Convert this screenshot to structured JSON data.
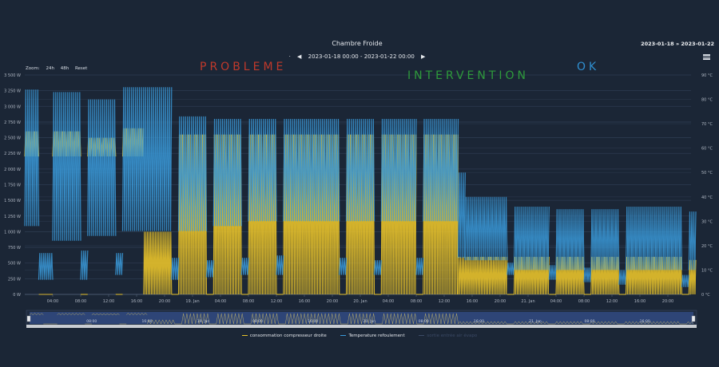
{
  "header": {
    "title": "Chambre Froide",
    "range_text": "2023-01-18 00:00 - 2023-01-22 00:00",
    "range_top_right": "2023-01-18 » 2023-01-22",
    "prev_icon": "triangle-left",
    "next_icon": "triangle-right",
    "menu_icon": "hamburger"
  },
  "zoom": {
    "label": "Zoom:",
    "buttons": [
      "24h",
      "48h",
      "Reset"
    ]
  },
  "annotations": {
    "probleme": "PROBLEME",
    "intervention": "INTERVENTION",
    "ok": "OK"
  },
  "legend": [
    {
      "label": "consommation compresseur droite",
      "color": "#e8c22a",
      "visible": true
    },
    {
      "label": "Temperature refoulement",
      "color": "#3a9ad9",
      "visible": true
    },
    {
      "label": "sortie entrée air évapo",
      "color": "#3c4a66",
      "visible": false
    }
  ],
  "navigator": {
    "labels": [
      "08:00",
      "16:00",
      "19. Jan",
      "08:00",
      "16:00",
      "20. Jan",
      "08:00",
      "16:00",
      "21. Jan",
      "08:00",
      "16:00"
    ]
  },
  "chart_data": {
    "type": "line",
    "title": "Chambre Froide",
    "x_range": [
      "2023-01-18 00:00",
      "2023-01-22 00:00"
    ],
    "x_tick_labels": [
      "04:00",
      "08:00",
      "12:00",
      "16:00",
      "20:00",
      "19. Jan",
      "04:00",
      "08:00",
      "12:00",
      "16:00",
      "20:00",
      "20. Jan",
      "04:00",
      "08:00",
      "12:00",
      "16:00",
      "20:00",
      "21. Jan",
      "04:00",
      "08:00",
      "12:00",
      "16:00",
      "20:00"
    ],
    "y_left": {
      "unit": "W",
      "range": [
        0,
        3500
      ],
      "tick_labels": [
        "0 W",
        "250 W",
        "500 W",
        "750 W",
        "1 000 W",
        "1 250 W",
        "1 500 W",
        "1 750 W",
        "2 000 W",
        "2 250 W",
        "2 500 W",
        "2 750 W",
        "3 000 W",
        "3 250 W",
        "3 500 W"
      ]
    },
    "y_right": {
      "unit": "°C",
      "range": [
        0,
        90
      ],
      "tick_labels": [
        "0 °C",
        "10 °C",
        "20 °C",
        "30 °C",
        "40 °C",
        "50 °C",
        "60 °C",
        "70 °C",
        "80 °C",
        "90 °C"
      ]
    },
    "grid": true,
    "legend_position": "bottom",
    "series": [
      {
        "name": "consommation compresseur droite",
        "axis": "left",
        "color": "#e8c22a",
        "segments": [
          {
            "from": "2023-01-18 00:00",
            "to": "2023-01-18 02:00",
            "min": 2200,
            "max": 2600
          },
          {
            "from": "2023-01-18 02:00",
            "to": "2023-01-18 04:00",
            "min": 0,
            "max": 0
          },
          {
            "from": "2023-01-18 04:00",
            "to": "2023-01-18 08:00",
            "min": 2200,
            "max": 2600
          },
          {
            "from": "2023-01-18 08:00",
            "to": "2023-01-18 09:00",
            "min": 0,
            "max": 0
          },
          {
            "from": "2023-01-18 09:00",
            "to": "2023-01-18 13:00",
            "min": 2200,
            "max": 2500
          },
          {
            "from": "2023-01-18 13:00",
            "to": "2023-01-18 14:00",
            "min": 0,
            "max": 0
          },
          {
            "from": "2023-01-18 14:00",
            "to": "2023-01-18 17:00",
            "min": 2200,
            "max": 2650
          },
          {
            "from": "2023-01-18 17:00",
            "to": "2023-01-18 21:00",
            "min": 0,
            "max": 1000
          },
          {
            "from": "2023-01-18 21:00",
            "to": "2023-01-18 22:00",
            "min": 0,
            "max": 0
          },
          {
            "from": "2023-01-18 22:00",
            "to": "2023-01-19 02:00",
            "min": 0,
            "max": 2550
          },
          {
            "from": "2023-01-19 02:00",
            "to": "2023-01-19 03:00",
            "min": 0,
            "max": 0
          },
          {
            "from": "2023-01-19 03:00",
            "to": "2023-01-19 07:00",
            "min": 0,
            "max": 2550
          },
          {
            "from": "2023-01-19 07:00",
            "to": "2023-01-19 08:00",
            "min": 0,
            "max": 0
          },
          {
            "from": "2023-01-19 08:00",
            "to": "2023-01-19 12:00",
            "min": 0,
            "max": 2550
          },
          {
            "from": "2023-01-19 12:00",
            "to": "2023-01-19 13:00",
            "min": 0,
            "max": 0
          },
          {
            "from": "2023-01-19 13:00",
            "to": "2023-01-19 21:00",
            "min": 0,
            "max": 2550
          },
          {
            "from": "2023-01-19 21:00",
            "to": "2023-01-19 22:00",
            "min": 0,
            "max": 0
          },
          {
            "from": "2023-01-19 22:00",
            "to": "2023-01-20 02:00",
            "min": 0,
            "max": 2550
          },
          {
            "from": "2023-01-20 02:00",
            "to": "2023-01-20 03:00",
            "min": 0,
            "max": 0
          },
          {
            "from": "2023-01-20 03:00",
            "to": "2023-01-20 08:00",
            "min": 0,
            "max": 2550
          },
          {
            "from": "2023-01-20 08:00",
            "to": "2023-01-20 09:00",
            "min": 0,
            "max": 0
          },
          {
            "from": "2023-01-20 09:00",
            "to": "2023-01-20 14:00",
            "min": 0,
            "max": 2550
          },
          {
            "from": "2023-01-20 14:00",
            "to": "2023-01-20 21:00",
            "min": 0,
            "max": 600
          },
          {
            "from": "2023-01-20 21:00",
            "to": "2023-01-20 22:00",
            "min": 0,
            "max": 0
          },
          {
            "from": "2023-01-20 22:00",
            "to": "2023-01-21 03:00",
            "min": 0,
            "max": 600
          },
          {
            "from": "2023-01-21 03:00",
            "to": "2023-01-21 04:00",
            "min": 0,
            "max": 0
          },
          {
            "from": "2023-01-21 04:00",
            "to": "2023-01-21 08:00",
            "min": 0,
            "max": 600
          },
          {
            "from": "2023-01-21 08:00",
            "to": "2023-01-21 09:00",
            "min": 0,
            "max": 0
          },
          {
            "from": "2023-01-21 09:00",
            "to": "2023-01-21 13:00",
            "min": 0,
            "max": 600
          },
          {
            "from": "2023-01-21 13:00",
            "to": "2023-01-21 14:00",
            "min": 0,
            "max": 0
          },
          {
            "from": "2023-01-21 14:00",
            "to": "2023-01-21 22:00",
            "min": 0,
            "max": 600
          },
          {
            "from": "2023-01-21 22:00",
            "to": "2023-01-21 23:00",
            "min": 0,
            "max": 0
          },
          {
            "from": "2023-01-21 23:00",
            "to": "2023-01-22 00:00",
            "min": 0,
            "max": 550
          }
        ]
      },
      {
        "name": "Temperature refoulement",
        "axis": "right",
        "color": "#3a9ad9",
        "segments": [
          {
            "from": "2023-01-18 00:00",
            "to": "2023-01-18 02:00",
            "min": 28,
            "max": 84
          },
          {
            "from": "2023-01-18 02:00",
            "to": "2023-01-18 04:00",
            "min": 6,
            "max": 17
          },
          {
            "from": "2023-01-18 04:00",
            "to": "2023-01-18 08:00",
            "min": 22,
            "max": 83
          },
          {
            "from": "2023-01-18 08:00",
            "to": "2023-01-18 09:00",
            "min": 6,
            "max": 18
          },
          {
            "from": "2023-01-18 09:00",
            "to": "2023-01-18 13:00",
            "min": 24,
            "max": 80
          },
          {
            "from": "2023-01-18 13:00",
            "to": "2023-01-18 14:00",
            "min": 8,
            "max": 17
          },
          {
            "from": "2023-01-18 14:00",
            "to": "2023-01-18 21:00",
            "min": 26,
            "max": 85
          },
          {
            "from": "2023-01-18 21:00",
            "to": "2023-01-18 22:00",
            "min": 6,
            "max": 15
          },
          {
            "from": "2023-01-18 22:00",
            "to": "2023-01-19 02:00",
            "min": 26,
            "max": 73
          },
          {
            "from": "2023-01-19 02:00",
            "to": "2023-01-19 03:00",
            "min": 7,
            "max": 14
          },
          {
            "from": "2023-01-19 03:00",
            "to": "2023-01-19 07:00",
            "min": 28,
            "max": 72
          },
          {
            "from": "2023-01-19 07:00",
            "to": "2023-01-19 08:00",
            "min": 8,
            "max": 15
          },
          {
            "from": "2023-01-19 08:00",
            "to": "2023-01-19 12:00",
            "min": 30,
            "max": 72
          },
          {
            "from": "2023-01-19 12:00",
            "to": "2023-01-19 13:00",
            "min": 8,
            "max": 16
          },
          {
            "from": "2023-01-19 13:00",
            "to": "2023-01-19 21:00",
            "min": 30,
            "max": 72
          },
          {
            "from": "2023-01-19 21:00",
            "to": "2023-01-19 22:00",
            "min": 8,
            "max": 15
          },
          {
            "from": "2023-01-19 22:00",
            "to": "2023-01-20 02:00",
            "min": 30,
            "max": 72
          },
          {
            "from": "2023-01-20 02:00",
            "to": "2023-01-20 03:00",
            "min": 8,
            "max": 14
          },
          {
            "from": "2023-01-20 03:00",
            "to": "2023-01-20 08:00",
            "min": 30,
            "max": 72
          },
          {
            "from": "2023-01-20 08:00",
            "to": "2023-01-20 09:00",
            "min": 8,
            "max": 15
          },
          {
            "from": "2023-01-20 09:00",
            "to": "2023-01-20 14:00",
            "min": 30,
            "max": 72
          },
          {
            "from": "2023-01-20 14:00",
            "to": "2023-01-20 15:00",
            "min": 15,
            "max": 50
          },
          {
            "from": "2023-01-20 15:00",
            "to": "2023-01-20 21:00",
            "min": 14,
            "max": 40
          },
          {
            "from": "2023-01-20 21:00",
            "to": "2023-01-20 22:00",
            "min": 8,
            "max": 13
          },
          {
            "from": "2023-01-20 22:00",
            "to": "2023-01-21 03:00",
            "min": 10,
            "max": 36
          },
          {
            "from": "2023-01-21 03:00",
            "to": "2023-01-21 04:00",
            "min": 6,
            "max": 12
          },
          {
            "from": "2023-01-21 04:00",
            "to": "2023-01-21 08:00",
            "min": 10,
            "max": 35
          },
          {
            "from": "2023-01-21 08:00",
            "to": "2023-01-21 09:00",
            "min": 5,
            "max": 11
          },
          {
            "from": "2023-01-21 09:00",
            "to": "2023-01-21 13:00",
            "min": 10,
            "max": 35
          },
          {
            "from": "2023-01-21 13:00",
            "to": "2023-01-21 14:00",
            "min": 4,
            "max": 10
          },
          {
            "from": "2023-01-21 14:00",
            "to": "2023-01-21 22:00",
            "min": 10,
            "max": 36
          },
          {
            "from": "2023-01-21 22:00",
            "to": "2023-01-21 23:00",
            "min": 3,
            "max": 8
          },
          {
            "from": "2023-01-21 23:00",
            "to": "2023-01-22 00:00",
            "min": 10,
            "max": 34
          }
        ]
      }
    ]
  }
}
